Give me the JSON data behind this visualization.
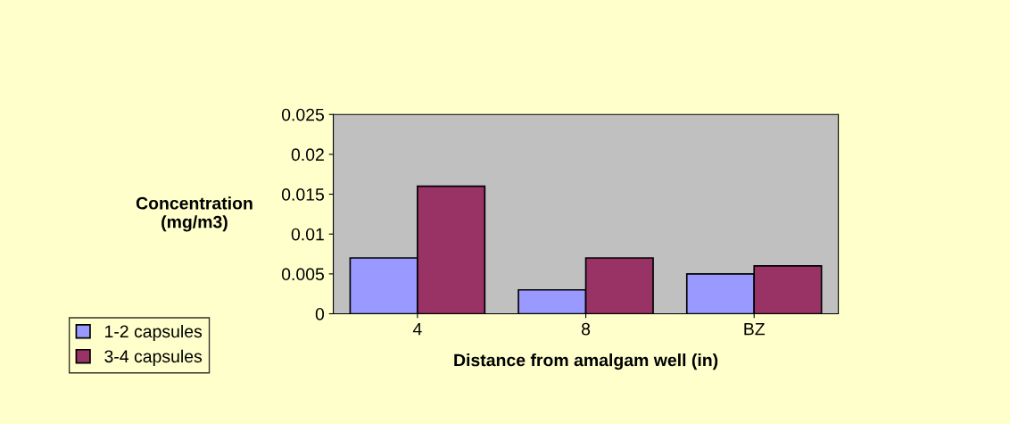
{
  "chart_data": {
    "type": "bar",
    "xlabel": "Distance from amalgam well (in)",
    "ylabel": "Concentration\n(mg/m3)",
    "categories": [
      "4",
      "8",
      "BZ"
    ],
    "series": [
      {
        "name": "1-2 capsules",
        "color": "#9999ff",
        "values": [
          0.007,
          0.003,
          0.005
        ]
      },
      {
        "name": "3-4 capsules",
        "color": "#993366",
        "values": [
          0.016,
          0.007,
          0.006
        ]
      }
    ],
    "ylim": [
      0,
      0.025
    ],
    "yticks": [
      0,
      0.005,
      0.01,
      0.015,
      0.02,
      0.025
    ],
    "grid": false,
    "legend": "left"
  }
}
